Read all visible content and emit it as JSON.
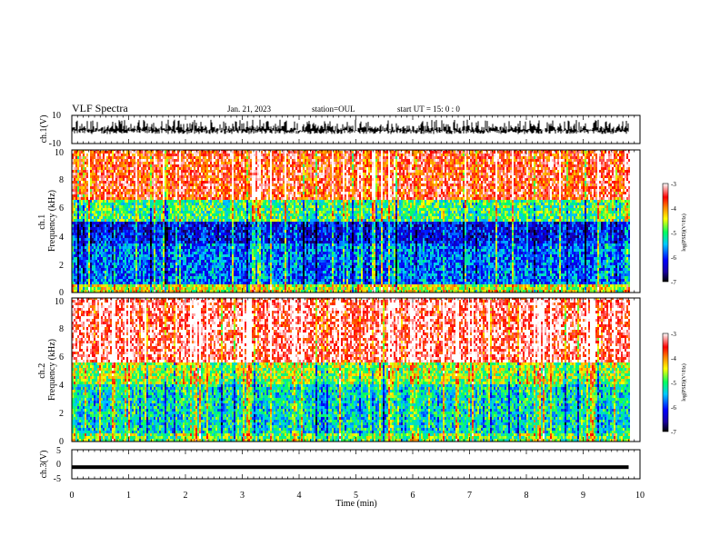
{
  "header": {
    "title": "VLF Spectra",
    "date": "Jan. 21, 2023",
    "station": "station=OUL",
    "start": "start UT =  15: 0  : 0"
  },
  "chart_data": [
    {
      "type": "line",
      "panel": "ch1-waveform",
      "ylabel": "ch.1(V)",
      "ylim": [
        -10,
        10
      ],
      "ytick_labels": [
        "10",
        "-10"
      ],
      "x_range_min": [
        0,
        10
      ],
      "data_extent_min": [
        0,
        9.8
      ],
      "y_center": 0,
      "y_envelope": [
        -5,
        7
      ],
      "description_of_data": "dense waveform trace, baseline near 0 V with frequent spikes to about +7 V"
    },
    {
      "type": "heatmap",
      "panel": "ch1-spectrogram",
      "ylabel": "ch.1\nFrequency  (kHz)",
      "ylim": [
        0,
        10
      ],
      "ytick_labels": [
        "0",
        "2",
        "4",
        "6",
        "8",
        "10"
      ],
      "xlim": [
        0,
        10
      ],
      "data_extent_min": [
        0,
        9.8
      ],
      "colorbar": {
        "label": "log(PSD)(V²/Hz)",
        "range": [
          -7,
          -3
        ],
        "tick_labels": [
          "-3",
          "-4",
          "-5",
          "-6",
          "-7"
        ]
      },
      "levels_by_band_khz": [
        {
          "band": [
            0,
            0.5
          ],
          "log_psd": -4.5
        },
        {
          "band": [
            0.5,
            3.5
          ],
          "log_psd": -5.8
        },
        {
          "band": [
            3.5,
            5
          ],
          "log_psd": -6.2
        },
        {
          "band": [
            5,
            6.5
          ],
          "log_psd": -5.0
        },
        {
          "band": [
            6.5,
            10
          ],
          "log_psd": -3.6
        }
      ]
    },
    {
      "type": "heatmap",
      "panel": "ch2-spectrogram",
      "ylabel": "ch.2\nFrequency  (kHz)",
      "ylim": [
        0,
        10
      ],
      "ytick_labels": [
        "0",
        "2",
        "4",
        "6",
        "8",
        "10"
      ],
      "xlim": [
        0,
        10
      ],
      "data_extent_min": [
        0,
        9.8
      ],
      "colorbar": {
        "label": "log(PSD)(V²/Hz)",
        "range": [
          -7,
          -3
        ],
        "tick_labels": [
          "-3",
          "-4",
          "-5",
          "-6",
          "-7"
        ]
      },
      "levels_by_band_khz": [
        {
          "band": [
            0,
            0.5
          ],
          "log_psd": -4.8
        },
        {
          "band": [
            0.5,
            4
          ],
          "log_psd": -5.3
        },
        {
          "band": [
            4,
            5.5
          ],
          "log_psd": -4.7
        },
        {
          "band": [
            5.5,
            10
          ],
          "log_psd": -3.3
        }
      ]
    },
    {
      "type": "line",
      "panel": "ch3-waveform",
      "ylabel": "ch.3(V)",
      "ylim": [
        -5,
        5
      ],
      "ytick_labels": [
        "5",
        "0",
        "-5"
      ],
      "x_range_min": [
        0,
        10
      ],
      "data_extent_min": [
        0,
        9.8
      ],
      "y_level": -1,
      "description_of_data": "flat constant signal near -1 V"
    }
  ],
  "xaxis": {
    "label": "Time  (min)",
    "ticks": [
      0,
      1,
      2,
      3,
      4,
      5,
      6,
      7,
      8,
      9,
      10
    ],
    "tick_labels": [
      "0",
      "1",
      "2",
      "3",
      "4",
      "5",
      "6",
      "7",
      "8",
      "9",
      "10"
    ]
  },
  "colors": {
    "palette": [
      "#000000",
      "#1a00a0",
      "#0000ff",
      "#00c8ff",
      "#00ff60",
      "#ffff00",
      "#ff8000",
      "#ff0000",
      "#ffffff"
    ]
  }
}
